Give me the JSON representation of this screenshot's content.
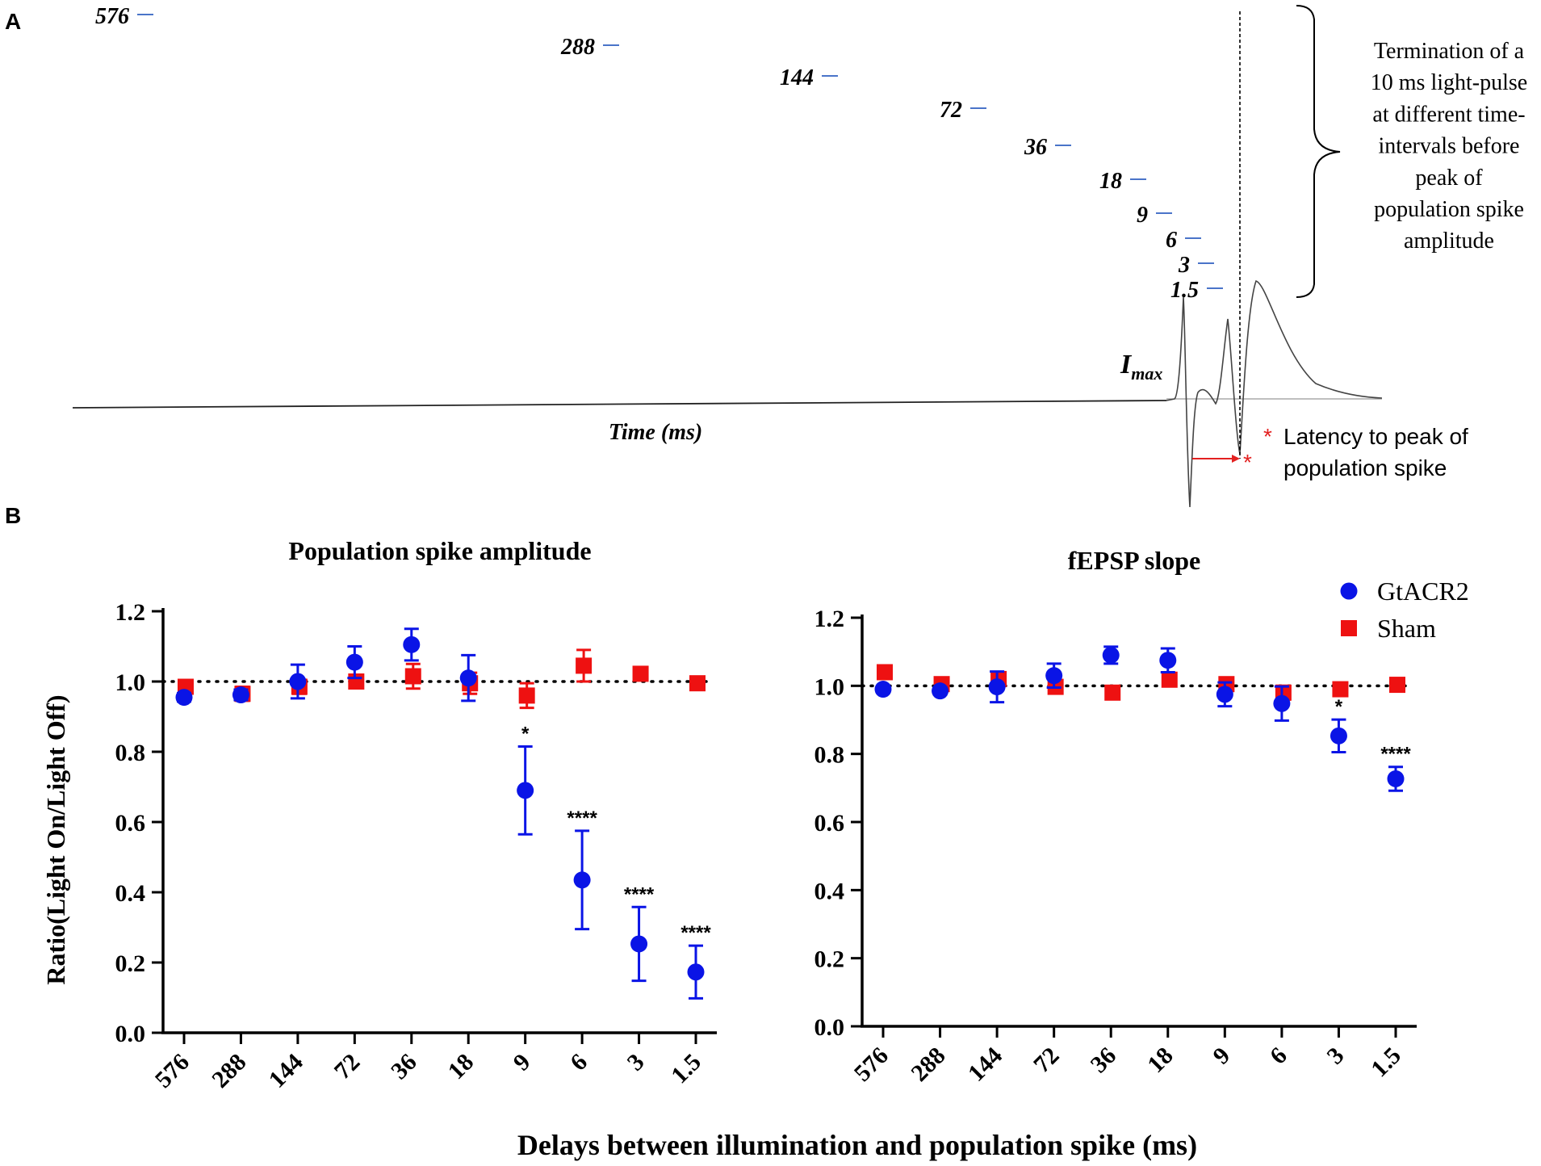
{
  "colors": {
    "gtacr2": "#0a14e6",
    "sham": "#ee1111",
    "tick_marker": "#4a74c9",
    "trace": "#444444",
    "latency": "#e32020",
    "axis": "#000000"
  },
  "panel_a": {
    "label": "A",
    "delay_labels": [
      "576",
      "288",
      "144",
      "72",
      "36",
      "18",
      "9",
      "6",
      "3",
      "1.5"
    ],
    "imax_main": "I",
    "imax_sub": "max",
    "time_label": "Time (ms)",
    "bracket_text_lines": [
      "Termination of a",
      "10 ms light-pulse",
      "at different time-",
      "intervals before",
      "peak of",
      "population spike",
      "amplitude"
    ],
    "latency_star": "*",
    "latency_lines": [
      "Latency to peak of",
      "population spike"
    ]
  },
  "panel_b": {
    "label": "B",
    "x_axis_title": "Delays between illumination and population spike (ms)",
    "y_axis_title": "Ratio(Light On/Light Off)"
  },
  "legend": {
    "items": [
      {
        "name": "GtACR2",
        "marker": "circle"
      },
      {
        "name": "Sham",
        "marker": "square"
      }
    ]
  },
  "chart_data": [
    {
      "type": "scatter",
      "title": "Population spike amplitude",
      "xlabel": "Delays between illumination and population spike (ms)",
      "ylabel": "Ratio(Light On/Light Off)",
      "categories": [
        "576",
        "288",
        "144",
        "72",
        "36",
        "18",
        "9",
        "6",
        "3",
        "1.5"
      ],
      "ylim": [
        0,
        1.2
      ],
      "yticks": [
        "0.0",
        "0.2",
        "0.4",
        "0.6",
        "0.8",
        "1.0",
        "1.2"
      ],
      "reference_line": 1.0,
      "series": [
        {
          "name": "GtACR2",
          "values": [
            0.955,
            0.962,
            1.0,
            1.055,
            1.105,
            1.01,
            0.69,
            0.435,
            0.253,
            0.173
          ],
          "errors": [
            0.012,
            0.015,
            0.048,
            0.045,
            0.045,
            0.065,
            0.125,
            0.14,
            0.105,
            0.075
          ]
        },
        {
          "name": "Sham",
          "values": [
            0.985,
            0.965,
            0.985,
            1.0,
            1.015,
            0.995,
            0.96,
            1.045,
            1.022,
            0.995
          ],
          "errors": [
            0.01,
            0.02,
            0.02,
            0.012,
            0.035,
            0.03,
            0.035,
            0.045,
            0.012,
            0.01
          ]
        }
      ],
      "annotations": [
        {
          "category": "9",
          "text": "*"
        },
        {
          "category": "6",
          "text": "****"
        },
        {
          "category": "3",
          "text": "****"
        },
        {
          "category": "1.5",
          "text": "****"
        }
      ]
    },
    {
      "type": "scatter",
      "title": "fEPSP slope",
      "xlabel": "Delays between illumination and population spike (ms)",
      "ylabel": "",
      "categories": [
        "576",
        "288",
        "144",
        "72",
        "36",
        "18",
        "9",
        "6",
        "3",
        "1.5"
      ],
      "ylim": [
        0,
        1.2
      ],
      "yticks": [
        "0.0",
        "0.2",
        "0.4",
        "0.6",
        "0.8",
        "1.0",
        "1.2"
      ],
      "reference_line": 1.0,
      "series": [
        {
          "name": "GtACR2",
          "values": [
            0.99,
            0.985,
            0.997,
            1.03,
            1.09,
            1.075,
            0.975,
            0.948,
            0.853,
            0.727
          ],
          "errors": [
            0.01,
            0.01,
            0.045,
            0.035,
            0.025,
            0.035,
            0.035,
            0.05,
            0.048,
            0.035
          ]
        },
        {
          "name": "Sham",
          "values": [
            1.04,
            1.005,
            1.02,
            0.997,
            0.98,
            1.018,
            1.005,
            0.98,
            0.99,
            1.003
          ],
          "errors": [
            0.01,
            0.01,
            0.015,
            0.01,
            0.008,
            0.015,
            0.01,
            0.02,
            0.01,
            0.008
          ]
        }
      ],
      "annotations": [
        {
          "category": "3",
          "text": "*"
        },
        {
          "category": "1.5",
          "text": "****"
        }
      ]
    }
  ]
}
